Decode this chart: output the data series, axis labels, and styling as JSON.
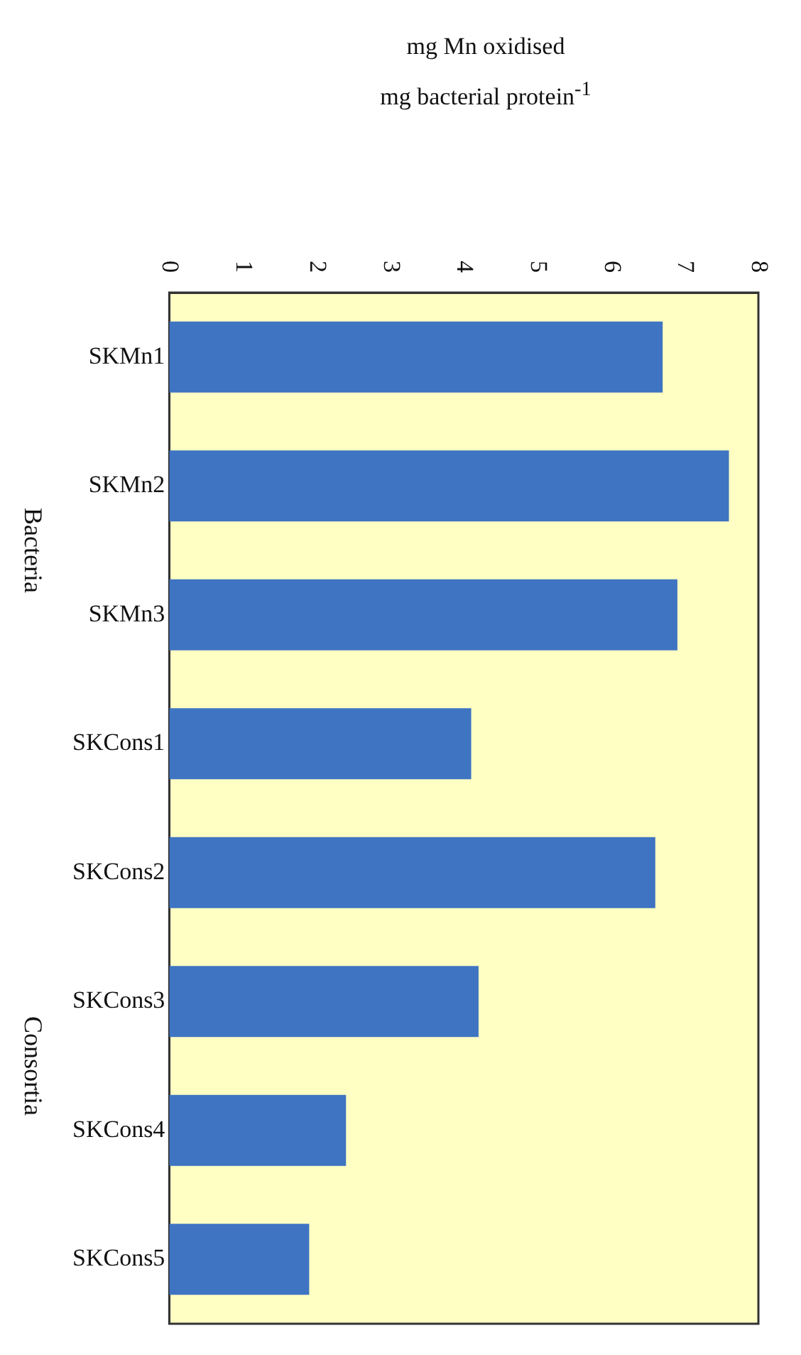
{
  "chart_data": {
    "type": "bar",
    "orientation": "horizontal",
    "title": "mg Mn oxidised",
    "subtitle": "mg bacterial protein$^{-1}$",
    "categories": [
      "SKMn1",
      "SKMn2",
      "SKMn3",
      "SKCons1",
      "SKCons2",
      "SKCons3",
      "SKCons4",
      "SKCons5"
    ],
    "values": [
      6.7,
      7.6,
      6.9,
      4.1,
      6.6,
      4.2,
      2.4,
      1.9
    ],
    "color": "#3f74c2",
    "xlim": [
      0,
      8
    ],
    "xticks": [
      0,
      1,
      2,
      3,
      4,
      5,
      6,
      7,
      8
    ],
    "grid": false,
    "annotations": [
      "Bacteria",
      "Consortia"
    ]
  }
}
